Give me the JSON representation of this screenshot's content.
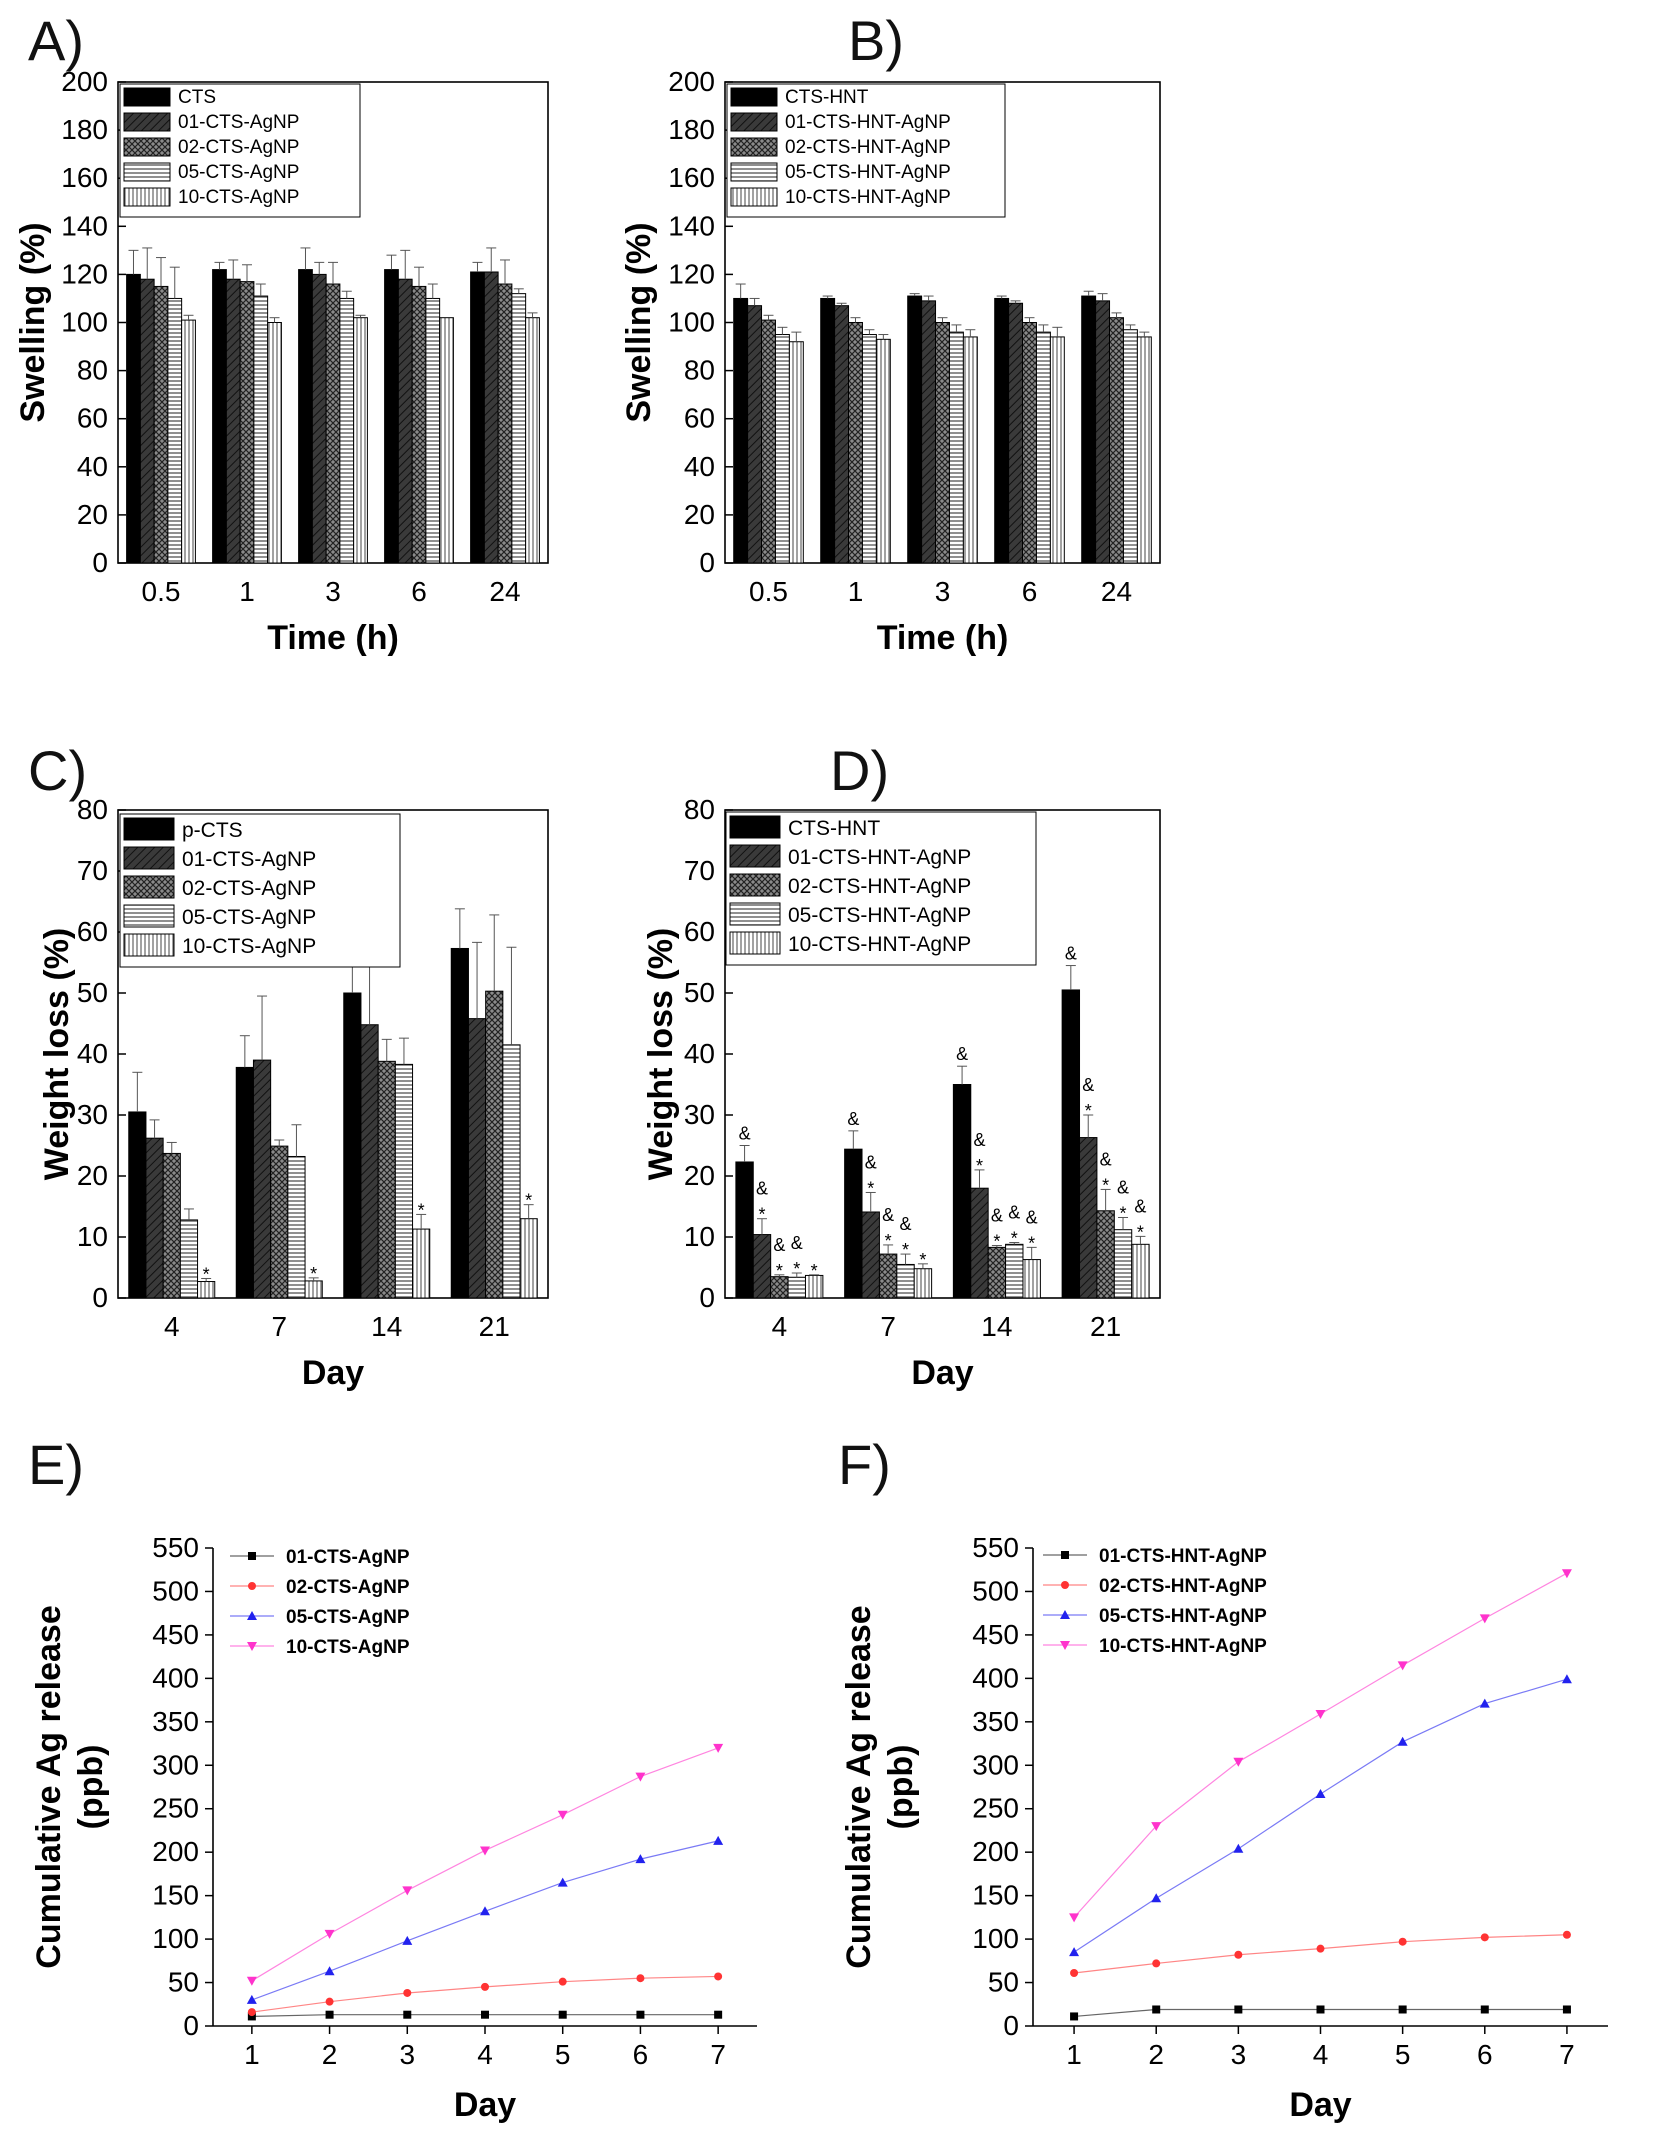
{
  "panels": [
    {
      "label": "A)",
      "chart_data": {
        "type": "bar",
        "categories": [
          "0.5",
          "1",
          "3",
          "6",
          "24"
        ],
        "xlabel": "Time (h)",
        "ylabel": "Swelling (%)",
        "ylim": [
          0,
          200
        ],
        "yticks": [
          0,
          20,
          40,
          60,
          80,
          100,
          120,
          140,
          160,
          180,
          200
        ],
        "legend": "top-left",
        "series": [
          {
            "name": "CTS",
            "pattern": "solid",
            "values": [
              120,
              122,
              122,
              122,
              121
            ],
            "errors": [
              10,
              3,
              9,
              6,
              4
            ]
          },
          {
            "name": "01-CTS-AgNP",
            "pattern": "dark",
            "values": [
              118,
              118,
              120,
              118,
              121
            ],
            "errors": [
              13,
              8,
              5,
              12,
              10
            ]
          },
          {
            "name": "02-CTS-AgNP",
            "pattern": "cross",
            "values": [
              115,
              117,
              116,
              115,
              116
            ],
            "errors": [
              12,
              7,
              9,
              8,
              10
            ]
          },
          {
            "name": "05-CTS-AgNP",
            "pattern": "hlines",
            "values": [
              110,
              111,
              110,
              110,
              112
            ],
            "errors": [
              13,
              5,
              3,
              6,
              2
            ]
          },
          {
            "name": "10-CTS-AgNP",
            "pattern": "vlines",
            "values": [
              101,
              100,
              102,
              102,
              102
            ],
            "errors": [
              2,
              2,
              1,
              0,
              2
            ]
          }
        ]
      }
    },
    {
      "label": "B)",
      "chart_data": {
        "type": "bar",
        "categories": [
          "0.5",
          "1",
          "3",
          "6",
          "24"
        ],
        "xlabel": "Time (h)",
        "ylabel": "Swelling (%)",
        "ylim": [
          0,
          200
        ],
        "yticks": [
          0,
          20,
          40,
          60,
          80,
          100,
          120,
          140,
          160,
          180,
          200
        ],
        "legend": "top-left",
        "series": [
          {
            "name": "CTS-HNT",
            "pattern": "solid",
            "values": [
              110,
              110,
              111,
              110,
              111
            ],
            "errors": [
              6,
              1,
              1,
              1,
              2
            ]
          },
          {
            "name": "01-CTS-HNT-AgNP",
            "pattern": "dark",
            "values": [
              107,
              107,
              109,
              108,
              109
            ],
            "errors": [
              3,
              1,
              2,
              1,
              3
            ]
          },
          {
            "name": "02-CTS-HNT-AgNP",
            "pattern": "cross",
            "values": [
              101,
              100,
              100,
              100,
              102
            ],
            "errors": [
              2,
              2,
              2,
              2,
              2
            ]
          },
          {
            "name": "05-CTS-HNT-AgNP",
            "pattern": "hlines",
            "values": [
              95,
              95,
              96,
              96,
              97
            ],
            "errors": [
              3,
              2,
              3,
              3,
              2
            ]
          },
          {
            "name": "10-CTS-HNT-AgNP",
            "pattern": "vlines",
            "values": [
              92,
              93,
              94,
              94,
              94
            ],
            "errors": [
              4,
              2,
              3,
              4,
              2
            ]
          }
        ]
      }
    },
    {
      "label": "C)",
      "chart_data": {
        "type": "bar",
        "categories": [
          "4",
          "7",
          "14",
          "21"
        ],
        "xlabel": "Day",
        "ylabel": "Weight loss (%)",
        "ylim": [
          0,
          80
        ],
        "yticks": [
          0,
          10,
          20,
          30,
          40,
          50,
          60,
          70,
          80
        ],
        "legend": "top-left",
        "series": [
          {
            "name": "p-CTS",
            "pattern": "solid",
            "values": [
              30.5,
              37.8,
              50,
              57.3
            ],
            "errors": [
              6.5,
              5.2,
              9.7,
              6.5
            ],
            "marks": [
              "",
              "",
              "",
              ""
            ]
          },
          {
            "name": "01-CTS-AgNP",
            "pattern": "dark",
            "values": [
              26.2,
              39,
              44.8,
              45.8
            ],
            "errors": [
              3,
              10.5,
              14.5,
              12.5
            ],
            "marks": [
              "",
              "",
              "",
              ""
            ]
          },
          {
            "name": "02-CTS-AgNP",
            "pattern": "cross",
            "values": [
              23.7,
              24.9,
              38.8,
              50.3
            ],
            "errors": [
              1.8,
              1,
              3.6,
              12.5
            ],
            "marks": [
              "",
              "",
              "",
              ""
            ]
          },
          {
            "name": "05-CTS-AgNP",
            "pattern": "hlines",
            "values": [
              12.8,
              23.2,
              38.3,
              41.5
            ],
            "errors": [
              1.8,
              5.2,
              4.3,
              16
            ],
            "marks": [
              "",
              "",
              "",
              ""
            ]
          },
          {
            "name": "10-CTS-AgNP",
            "pattern": "vlines",
            "values": [
              2.7,
              2.8,
              11.3,
              13
            ],
            "errors": [
              0.5,
              0.5,
              2.4,
              2.3
            ],
            "marks": [
              "*",
              "*",
              "*",
              "*"
            ]
          }
        ]
      }
    },
    {
      "label": "D)",
      "chart_data": {
        "type": "bar",
        "categories": [
          "4",
          "7",
          "14",
          "21"
        ],
        "xlabel": "Day",
        "ylabel": "Weight loss (%)",
        "ylim": [
          0,
          80
        ],
        "yticks": [
          0,
          10,
          20,
          30,
          40,
          50,
          60,
          70,
          80
        ],
        "legend": "top-left",
        "series": [
          {
            "name": "CTS-HNT",
            "pattern": "solid",
            "values": [
              22.3,
              24.4,
              35,
              50.5
            ],
            "errors": [
              2.7,
              3,
              3,
              4
            ],
            "marks": [
              "&",
              "&",
              "&",
              "&"
            ]
          },
          {
            "name": "01-CTS-HNT-AgNP",
            "pattern": "dark",
            "values": [
              10.4,
              14.1,
              18,
              26.3
            ],
            "errors": [
              2.6,
              3.2,
              3,
              3.7
            ],
            "marks": [
              "&*",
              "&*",
              "&*",
              "&*"
            ]
          },
          {
            "name": "02-CTS-HNT-AgNP",
            "pattern": "cross",
            "values": [
              3.5,
              7.2,
              8.3,
              14.3
            ],
            "errors": [
              0.3,
              1.5,
              0.3,
              3.5
            ],
            "marks": [
              "&*",
              "&*",
              "&*",
              "&*"
            ]
          },
          {
            "name": "05-CTS-HNT-AgNP",
            "pattern": "hlines",
            "values": [
              3.4,
              5.5,
              8.8,
              11.2
            ],
            "errors": [
              0.7,
              1.7,
              0.3,
              2
            ],
            "marks": [
              "&*",
              "&*",
              "&*",
              "&*"
            ]
          },
          {
            "name": "10-CTS-HNT-AgNP",
            "pattern": "vlines",
            "values": [
              3.7,
              4.8,
              6.3,
              8.8
            ],
            "errors": [
              0.1,
              0.8,
              2,
              1.3
            ],
            "marks": [
              "*",
              "*",
              "&*",
              "&*"
            ]
          }
        ]
      }
    },
    {
      "label": "E)",
      "chart_data": {
        "type": "line",
        "x": [
          1,
          2,
          3,
          4,
          5,
          6,
          7
        ],
        "xlabel": "Day",
        "ylabel": "Cumulative Ag release (ppb)",
        "ylabel_lines": [
          "Cumulative Ag release",
          "(ppb)"
        ],
        "ylim": [
          0,
          550
        ],
        "xlim": [
          0.5,
          7.5
        ],
        "yticks": [
          0,
          50,
          100,
          150,
          200,
          250,
          300,
          350,
          400,
          450,
          500,
          550
        ],
        "legend": "top-left",
        "series": [
          {
            "name": "01-CTS-AgNP",
            "color": "#000000",
            "marker": "square",
            "values": [
              11,
              13,
              13,
              13,
              13,
              13,
              13
            ]
          },
          {
            "name": "02-CTS-AgNP",
            "color": "#ff3333",
            "marker": "circle",
            "values": [
              16,
              28,
              38,
              45,
              51,
              55,
              57
            ]
          },
          {
            "name": "05-CTS-AgNP",
            "color": "#2222ee",
            "marker": "triangle-up",
            "values": [
              30,
              63,
              98,
              132,
              165,
              192,
              213
            ]
          },
          {
            "name": "10-CTS-AgNP",
            "color": "#ff33cc",
            "marker": "triangle-down",
            "values": [
              52,
              106,
              156,
              202,
              243,
              287,
              320
            ]
          }
        ]
      }
    },
    {
      "label": "F)",
      "chart_data": {
        "type": "line",
        "x": [
          1,
          2,
          3,
          4,
          5,
          6,
          7
        ],
        "xlabel": "Day",
        "ylabel": "Cumulative Ag release (ppb)",
        "ylabel_lines": [
          "Cumulative Ag release",
          "(ppb)"
        ],
        "ylim": [
          0,
          550
        ],
        "xlim": [
          0.5,
          7.5
        ],
        "yticks": [
          0,
          50,
          100,
          150,
          200,
          250,
          300,
          350,
          400,
          450,
          500,
          550
        ],
        "legend": "top-left",
        "series": [
          {
            "name": "01-CTS-HNT-AgNP",
            "color": "#000000",
            "marker": "square",
            "values": [
              11,
              19,
              19,
              19,
              19,
              19,
              19
            ]
          },
          {
            "name": "02-CTS-HNT-AgNP",
            "color": "#ff3333",
            "marker": "circle",
            "values": [
              61,
              72,
              82,
              89,
              97,
              102,
              105
            ]
          },
          {
            "name": "05-CTS-HNT-AgNP",
            "color": "#2222ee",
            "marker": "triangle-up",
            "values": [
              85,
              147,
              204,
              267,
              327,
              371,
              399
            ]
          },
          {
            "name": "10-CTS-HNT-AgNP",
            "color": "#ff33cc",
            "marker": "triangle-down",
            "values": [
              125,
              230,
              304,
              359,
              415,
              469,
              521
            ]
          }
        ]
      }
    }
  ]
}
